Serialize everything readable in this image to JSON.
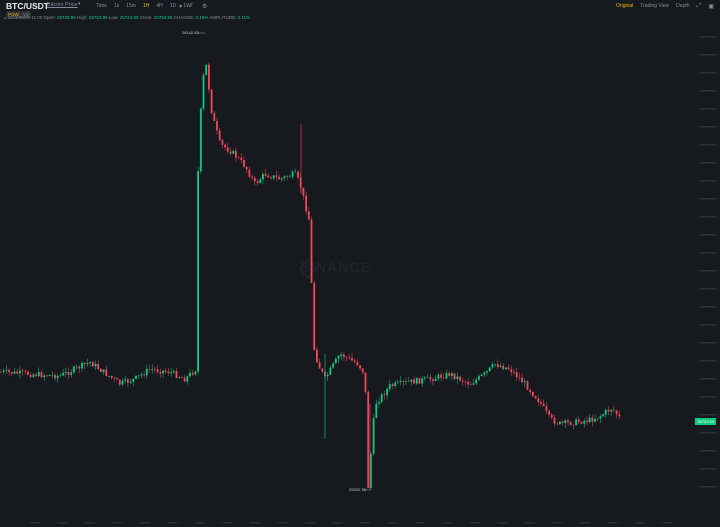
{
  "header": {
    "pair": "BTC/USDT",
    "price_type": "Bitcoin Price",
    "tags": [
      "POW",
      "Vol"
    ],
    "intervals": [
      "Time",
      "1s",
      "15m",
      "1H",
      "4H",
      "1D",
      "1W"
    ],
    "active_interval": "1H",
    "views": [
      "Original",
      "Trading View",
      "Depth"
    ],
    "active_view": "Original"
  },
  "ohlc": {
    "date": "2023/09/06 11:00",
    "open_label": "Open:",
    "open": "25728.95",
    "high_label": "High:",
    "high": "25753.96",
    "low_label": "Low:",
    "low": "25724.99",
    "close_label": "Close:",
    "close": "25753.95",
    "change_label": "CHANGE:",
    "change": "0.10%",
    "amplitude_label": "AMPLITUDE:",
    "amplitude": "0.11%"
  },
  "annotations": {
    "high_marker": "28142.83",
    "low_marker": "25332.75",
    "last_price": "25753.95"
  },
  "watermark": "BINANCE",
  "colors": {
    "up": "#0ecb81",
    "down": "#f6465d",
    "accent": "#f0b90b",
    "bg": "#161a1e"
  }
}
